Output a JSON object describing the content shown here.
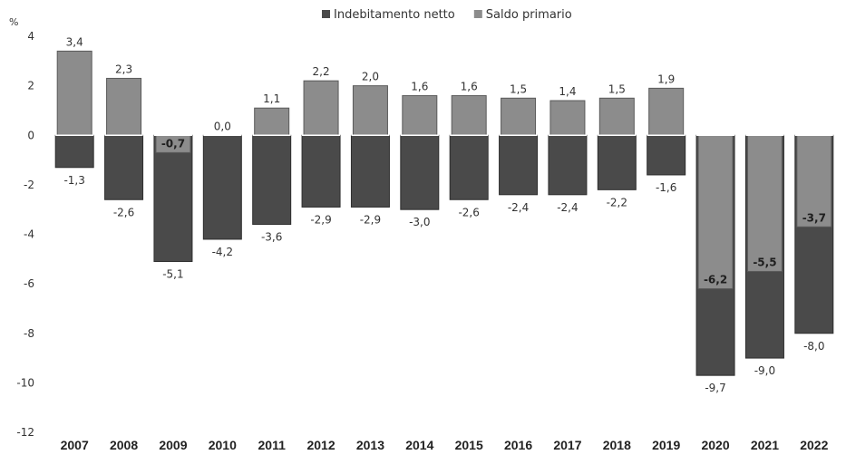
{
  "chart_data": {
    "type": "bar",
    "title": "",
    "ylabel": "%",
    "xlabel": "",
    "ylim": [
      -12,
      4
    ],
    "yticks": [
      4,
      2,
      0,
      -2,
      -4,
      -6,
      -8,
      -10,
      -12
    ],
    "categories": [
      "2007",
      "2008",
      "2009",
      "2010",
      "2011",
      "2012",
      "2013",
      "2014",
      "2015",
      "2016",
      "2017",
      "2018",
      "2019",
      "2020",
      "2021",
      "2022"
    ],
    "series": [
      {
        "name": "Indebitamento netto",
        "color": "#4a4a4a",
        "values": [
          -1.3,
          -2.6,
          -5.1,
          -4.2,
          -3.6,
          -2.9,
          -2.9,
          -3.0,
          -2.6,
          -2.4,
          -2.4,
          -2.2,
          -1.6,
          -9.7,
          -9.0,
          -8.0
        ],
        "labels": [
          "-1,3",
          "-2,6",
          "-5,1",
          "-4,2",
          "-3,6",
          "-2,9",
          "-2,9",
          "-3,0",
          "-2,6",
          "-2,4",
          "-2,4",
          "-2,2",
          "-1,6",
          "-9,7",
          "-9,0",
          "-8,0"
        ]
      },
      {
        "name": "Saldo primario",
        "color": "#8c8c8c",
        "values": [
          3.4,
          2.3,
          -0.7,
          0.0,
          1.1,
          2.2,
          2.0,
          1.6,
          1.6,
          1.5,
          1.4,
          1.5,
          1.9,
          -6.2,
          -5.5,
          -3.7
        ],
        "labels": [
          "3,4",
          "2,3",
          "-0,7",
          "0,0",
          "1,1",
          "2,2",
          "2,0",
          "1,6",
          "1,6",
          "1,5",
          "1,4",
          "1,5",
          "1,9",
          "-6,2",
          "-5,5",
          "-3,7"
        ]
      }
    ],
    "legend": {
      "position": "top-center",
      "entries": [
        "Indebitamento netto",
        "Saldo primario"
      ]
    },
    "grid": false
  }
}
